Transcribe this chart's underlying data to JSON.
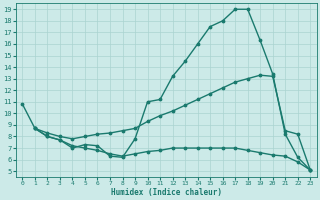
{
  "xlabel": "Humidex (Indice chaleur)",
  "bg_color": "#cceae8",
  "grid_color": "#aad4d0",
  "line_color": "#1a7a6e",
  "xlim": [
    -0.5,
    23.5
  ],
  "ylim": [
    4.5,
    19.5
  ],
  "xticks": [
    0,
    1,
    2,
    3,
    4,
    5,
    6,
    7,
    8,
    9,
    10,
    11,
    12,
    13,
    14,
    15,
    16,
    17,
    18,
    19,
    20,
    21,
    22,
    23
  ],
  "yticks": [
    5,
    6,
    7,
    8,
    9,
    10,
    11,
    12,
    13,
    14,
    15,
    16,
    17,
    18,
    19
  ],
  "series": [
    {
      "x": [
        0,
        1,
        2,
        3,
        4,
        5,
        6,
        7,
        8,
        9,
        10,
        11,
        12,
        13,
        14,
        15,
        16,
        17,
        18,
        19,
        20,
        21,
        22,
        23
      ],
      "y": [
        10.8,
        8.7,
        8.0,
        7.7,
        7.0,
        7.3,
        7.2,
        6.3,
        6.2,
        7.8,
        11.0,
        11.2,
        13.2,
        14.5,
        16.0,
        17.5,
        18.0,
        19.0,
        19.0,
        16.3,
        13.4,
        8.2,
        6.2,
        5.1
      ]
    },
    {
      "x": [
        1,
        2,
        3,
        4,
        5,
        6,
        7,
        8,
        9,
        10,
        11,
        12,
        13,
        14,
        15,
        16,
        17,
        18,
        19,
        20,
        21,
        22,
        23
      ],
      "y": [
        8.7,
        8.3,
        8.0,
        7.8,
        8.0,
        8.2,
        8.3,
        8.5,
        8.7,
        9.3,
        9.8,
        10.2,
        10.7,
        11.2,
        11.7,
        12.2,
        12.7,
        13.0,
        13.3,
        13.2,
        8.5,
        8.2,
        5.1
      ]
    },
    {
      "x": [
        1,
        2,
        3,
        4,
        5,
        6,
        7,
        8,
        9,
        10,
        11,
        12,
        13,
        14,
        15,
        16,
        17,
        18,
        19,
        20,
        21,
        22,
        23
      ],
      "y": [
        8.7,
        8.0,
        7.7,
        7.2,
        7.0,
        6.8,
        6.5,
        6.3,
        6.5,
        6.7,
        6.8,
        7.0,
        7.0,
        7.0,
        7.0,
        7.0,
        7.0,
        6.8,
        6.6,
        6.4,
        6.3,
        5.8,
        5.1
      ]
    }
  ],
  "marker": ".",
  "marker_size": 3.5,
  "line_width": 1.0
}
